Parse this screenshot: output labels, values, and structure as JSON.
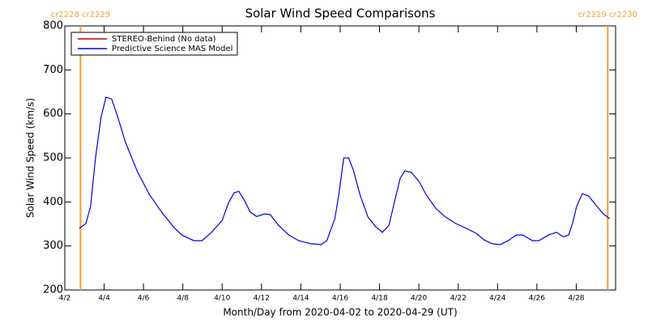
{
  "chart_data": {
    "type": "line",
    "title": "Solar Wind Speed Comparisons",
    "x_label": "Month/Day from 2020-04-02 to 2020-04-29 (UT)",
    "y_label": "Solar Wind Speed (km/s)",
    "xlim": [
      2,
      30
    ],
    "ylim": [
      200,
      800
    ],
    "xticks": [
      {
        "value": 2,
        "label": "4/2"
      },
      {
        "value": 4,
        "label": "4/4"
      },
      {
        "value": 6,
        "label": "4/6"
      },
      {
        "value": 8,
        "label": "4/8"
      },
      {
        "value": 10,
        "label": "4/10"
      },
      {
        "value": 12,
        "label": "4/12"
      },
      {
        "value": 14,
        "label": "4/14"
      },
      {
        "value": 16,
        "label": "4/16"
      },
      {
        "value": 18,
        "label": "4/18"
      },
      {
        "value": 20,
        "label": "4/20"
      },
      {
        "value": 22,
        "label": "4/22"
      },
      {
        "value": 24,
        "label": "4/24"
      },
      {
        "value": 26,
        "label": "4/26"
      },
      {
        "value": 28,
        "label": "4/28"
      }
    ],
    "yticks": [
      200,
      300,
      400,
      500,
      600,
      700,
      800
    ],
    "carrington_boundaries": [
      {
        "x": 2.8,
        "label": "cr2228 cr2229",
        "color": "#f0a030"
      },
      {
        "x": 29.6,
        "label": "cr2229 cr2230",
        "color": "#f0a030"
      }
    ],
    "series": [
      {
        "name": "STEREO-Behind (No data)",
        "color": "#c00000",
        "x": [],
        "values": []
      },
      {
        "name": "Predictive Science MAS Model",
        "color": "#0000e0",
        "x": [
          2.74,
          3.07,
          3.31,
          3.56,
          3.84,
          4.09,
          4.38,
          4.7,
          5.07,
          5.69,
          6.3,
          6.92,
          7.53,
          7.94,
          8.56,
          8.97,
          9.46,
          10.0,
          10.32,
          10.61,
          10.85,
          11.1,
          11.43,
          11.75,
          12.16,
          12.45,
          12.86,
          13.39,
          13.89,
          14.5,
          15.03,
          15.32,
          15.73,
          15.93,
          16.18,
          16.43,
          16.67,
          17.0,
          17.41,
          17.82,
          18.15,
          18.48,
          18.8,
          19.05,
          19.3,
          19.62,
          20.03,
          20.36,
          20.85,
          21.34,
          21.88,
          22.41,
          22.9,
          23.31,
          23.72,
          24.13,
          24.54,
          24.95,
          25.28,
          25.77,
          26.1,
          26.59,
          27.0,
          27.33,
          27.61,
          27.82,
          28.02,
          28.31,
          28.64,
          29.05,
          29.38,
          29.7
        ],
        "values": [
          340,
          351,
          390,
          500,
          592,
          638,
          634,
          592,
          537,
          469,
          417,
          377,
          343,
          325,
          312,
          312,
          331,
          358,
          398,
          421,
          424,
          406,
          377,
          367,
          373,
          371,
          347,
          325,
          312,
          305,
          303,
          312,
          362,
          417,
          500,
          500,
          472,
          417,
          366,
          343,
          331,
          347,
          408,
          454,
          471,
          467,
          445,
          417,
          386,
          366,
          351,
          340,
          329,
          314,
          305,
          303,
          312,
          325,
          325,
          312,
          312,
          325,
          331,
          321,
          325,
          353,
          390,
          419,
          413,
          390,
          373,
          362
        ]
      }
    ]
  }
}
